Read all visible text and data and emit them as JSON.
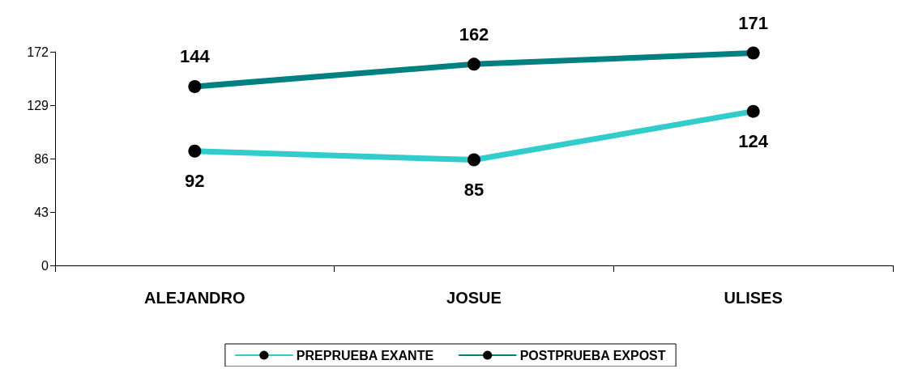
{
  "chart_data": {
    "type": "line",
    "categories": [
      "ALEJANDRO",
      "JOSUE",
      "ULISES"
    ],
    "series": [
      {
        "name": "PREPRUEBA EXANTE",
        "color": "#33cccc",
        "values": [
          92,
          85,
          124
        ]
      },
      {
        "name": "POSTPRUEBA EXPOST",
        "color": "#008080",
        "values": [
          144,
          162,
          171
        ]
      }
    ],
    "ylim": [
      0,
      172
    ],
    "yticks": [
      0,
      43,
      86,
      129,
      172
    ],
    "grid": false,
    "legend": "bottom",
    "marker": "circle",
    "line_style": "solid",
    "data_labels": true
  }
}
